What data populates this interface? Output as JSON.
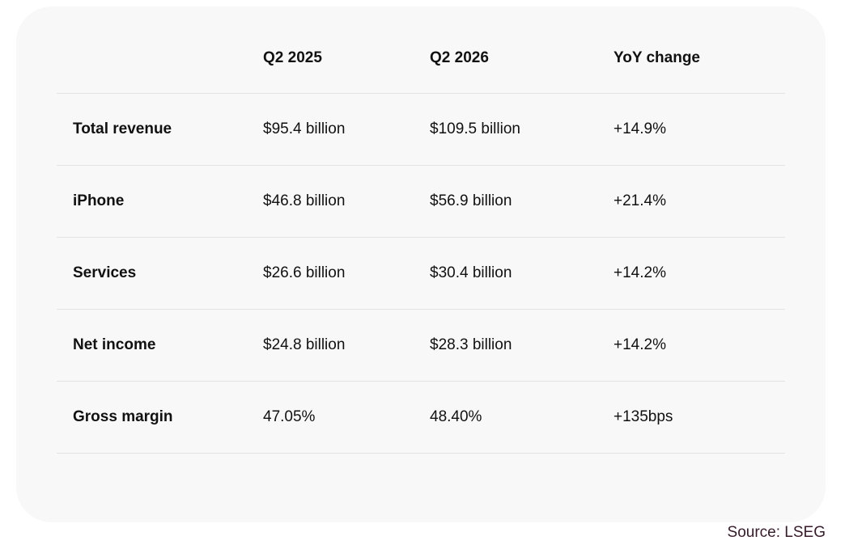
{
  "table": {
    "headers": [
      "",
      "Q2 2025",
      "Q2 2026",
      "YoY change"
    ],
    "rows": [
      [
        "Total revenue",
        "$95.4 billion",
        "$109.5 billion",
        "+14.9%"
      ],
      [
        "iPhone",
        "$46.8 billion",
        "$56.9 billion",
        "+21.4%"
      ],
      [
        "Services",
        "$26.6 billion",
        "$30.4 billion",
        "+14.2%"
      ],
      [
        "Net income",
        "$24.8 billion",
        "$28.3 billion",
        "+14.2%"
      ],
      [
        "Gross margin",
        "47.05%",
        "48.40%",
        "+135bps"
      ]
    ]
  },
  "source": "Source: LSEG"
}
